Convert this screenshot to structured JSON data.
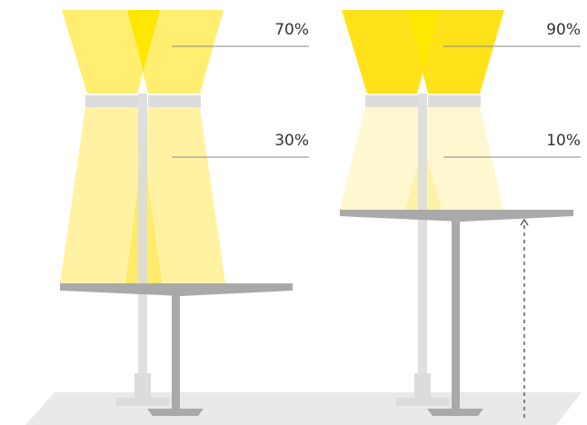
{
  "lamps": [
    {
      "id": "left",
      "uplight_label": "70%",
      "downlight_label": "30%"
    },
    {
      "id": "right",
      "uplight_label": "90%",
      "downlight_label": "10%"
    }
  ],
  "colors": {
    "uplight_left": "#FFEE70",
    "uplight_right": "#FFE21A",
    "uplight_overlap": "#FFE800",
    "downlight_left": "#FFF29E",
    "downlight_right": "#FFF7CC",
    "pole": "#DCDCDC",
    "desk": "#A9A9A9",
    "floor": "#E9E9E9",
    "label_line": "#8A8A8A",
    "label_text": "#333333"
  }
}
